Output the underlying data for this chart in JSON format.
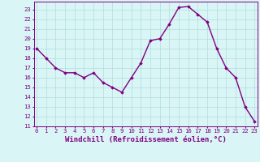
{
  "x": [
    0,
    1,
    2,
    3,
    4,
    5,
    6,
    7,
    8,
    9,
    10,
    11,
    12,
    13,
    14,
    15,
    16,
    17,
    18,
    19,
    20,
    21,
    22,
    23
  ],
  "y": [
    19,
    18,
    17,
    16.5,
    16.5,
    16,
    16.5,
    15.5,
    15,
    14.5,
    16,
    17.5,
    19.8,
    20,
    21.5,
    23.2,
    23.3,
    22.5,
    21.7,
    19,
    17,
    16,
    13,
    11.5
  ],
  "line_color": "#800080",
  "marker": "D",
  "marker_size": 1.8,
  "bg_color": "#d9f5f5",
  "grid_color": "#b0dede",
  "xlabel": "Windchill (Refroidissement éolien,°C)",
  "ylim": [
    11,
    23.8
  ],
  "xlim": [
    -0.3,
    23.3
  ],
  "yticks": [
    11,
    12,
    13,
    14,
    15,
    16,
    17,
    18,
    19,
    20,
    21,
    22,
    23
  ],
  "xticks": [
    0,
    1,
    2,
    3,
    4,
    5,
    6,
    7,
    8,
    9,
    10,
    11,
    12,
    13,
    14,
    15,
    16,
    17,
    18,
    19,
    20,
    21,
    22,
    23
  ],
  "tick_label_size": 5.2,
  "xlabel_size": 6.5,
  "line_width": 1.0
}
